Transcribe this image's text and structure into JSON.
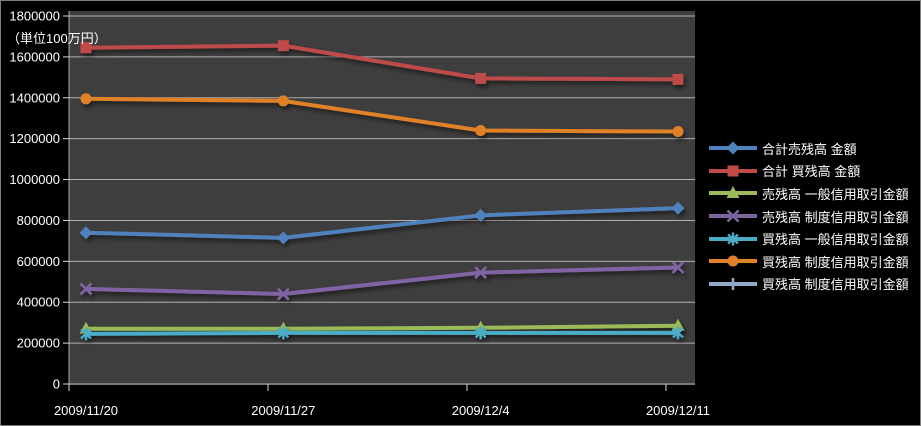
{
  "unit_label": "（単位100万円）",
  "chart_data": {
    "type": "line",
    "title": "",
    "xlabel": "",
    "ylabel": "（単位100万円）",
    "categories": [
      "2009/11/20",
      "2009/11/27",
      "2009/12/4",
      "2009/12/11"
    ],
    "y_axis": {
      "min": 0,
      "max": 1800000,
      "step": 200000,
      "tick_labels": [
        "0",
        "200000",
        "400000",
        "600000",
        "800000",
        "1000000",
        "1200000",
        "1400000",
        "1600000",
        "1800000"
      ]
    },
    "series": [
      {
        "name": "合計売残高 金額",
        "color": "#4F81BD",
        "marker": "diamond",
        "values": [
          740000,
          715000,
          825000,
          860000
        ]
      },
      {
        "name": "合計 買残高 金額",
        "color": "#BE4B48",
        "marker": "square",
        "values": [
          1645000,
          1655000,
          1495000,
          1490000
        ]
      },
      {
        "name": "売残高 一般信用取引金額",
        "color": "#9BBB59",
        "marker": "triangle",
        "values": [
          270000,
          270000,
          275000,
          285000
        ]
      },
      {
        "name": "売残高 制度信用取引金額",
        "color": "#8064A2",
        "marker": "x",
        "values": [
          465000,
          440000,
          545000,
          570000
        ]
      },
      {
        "name": "買残高 一般信用取引金額",
        "color": "#4BACC6",
        "marker": "asterisk",
        "values": [
          245000,
          250000,
          250000,
          250000
        ]
      },
      {
        "name": "買残高 制度信用取引金額",
        "color": "#DF8128",
        "marker": "circle",
        "values": [
          1395000,
          1385000,
          1240000,
          1235000
        ]
      },
      {
        "name": "買残高 制度信用取引金額",
        "color": "#90A8C6",
        "marker": "plus",
        "values": [
          null,
          null,
          null,
          null
        ]
      }
    ],
    "legend_position": "right",
    "grid": true,
    "colors": {
      "page_bg": "#000000",
      "plot_bg": "#3E3E3E",
      "grid": "#D9D9D9",
      "text": "#FFFFFF"
    }
  }
}
